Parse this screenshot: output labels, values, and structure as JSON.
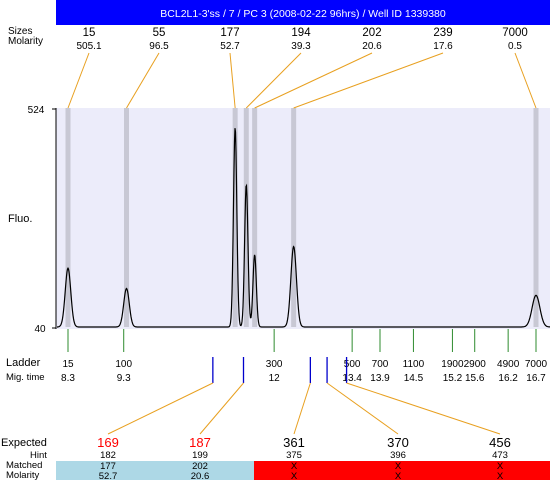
{
  "title": "BCL2L1-3'ss / 7 / PC 3 (2008-02-22 96hrs) / Well ID 1339380",
  "labels": {
    "sizes": "Sizes",
    "molarity": "Molarity",
    "fluo": "Fluo.",
    "ladder": "Ladder",
    "mig_time": "Mig. time",
    "expected": "Expected",
    "hint": "Hint",
    "matched": "Matched",
    "molarity_bottom": "Molarity"
  },
  "colors": {
    "title_bg": "#0000ff",
    "plot_bg": "#ececfa",
    "band": "#c8c8d4",
    "connector": "#e8a020",
    "ladder_tick": "#2e8b2e",
    "blue_tick": "#0000cc",
    "expected_highlight": "#ff0000",
    "matched_row": "#add8e6",
    "unmatched_row": "#ff0000"
  },
  "chart_data": {
    "type": "line",
    "ylabel": "Fluo.",
    "ylim": [
      40,
      524
    ],
    "y_ticks": [
      "524",
      "40"
    ],
    "peaks": [
      {
        "size": "15",
        "molarity": "505.1",
        "mig_time": 8.3,
        "height": 130
      },
      {
        "size": "55",
        "molarity": "96.5",
        "mig_time": 9.35,
        "height": 85
      },
      {
        "size": "177",
        "molarity": "52.7",
        "mig_time": 11.3,
        "height": 441
      },
      {
        "size": "194",
        "molarity": "39.3",
        "mig_time": 11.5,
        "height": 315
      },
      {
        "size": "202",
        "molarity": "20.6",
        "mig_time": 11.65,
        "height": 160
      },
      {
        "size": "239",
        "molarity": "17.6",
        "mig_time": 12.35,
        "height": 178
      },
      {
        "size": "7000",
        "molarity": "0.5",
        "mig_time": 16.7,
        "height": 70
      }
    ],
    "ladder": [
      {
        "size": "15",
        "mig_time": "8.3",
        "t": 8.3
      },
      {
        "size": "100",
        "mig_time": "9.3",
        "t": 9.3
      },
      {
        "size": "300",
        "mig_time": "12",
        "t": 12.0
      },
      {
        "size": "500",
        "mig_time": "13.4",
        "t": 13.4
      },
      {
        "size": "700",
        "mig_time": "13.9",
        "t": 13.9
      },
      {
        "size": "1100",
        "mig_time": "14.5",
        "t": 14.5
      },
      {
        "size": "1900",
        "mig_time": "15.2",
        "t": 15.2
      },
      {
        "size": "2900",
        "mig_time": "15.6",
        "t": 15.6
      },
      {
        "size": "4900",
        "mig_time": "16.2",
        "t": 16.2
      },
      {
        "size": "7000",
        "mig_time": "16.7",
        "t": 16.7
      }
    ],
    "expected": [
      {
        "expected": "169",
        "hint": "182",
        "matched": "177",
        "molarity": "52.7",
        "found": true,
        "t": 10.9
      },
      {
        "expected": "187",
        "hint": "199",
        "matched": "202",
        "molarity": "20.6",
        "found": true,
        "t": 11.45
      },
      {
        "expected": "361",
        "hint": "375",
        "matched": "X",
        "molarity": "X",
        "found": false,
        "t": 12.65
      },
      {
        "expected": "370",
        "hint": "396",
        "matched": "X",
        "molarity": "X",
        "found": false,
        "t": 12.95
      },
      {
        "expected": "456",
        "hint": "473",
        "matched": "X",
        "molarity": "X",
        "found": false,
        "t": 13.3
      }
    ]
  }
}
